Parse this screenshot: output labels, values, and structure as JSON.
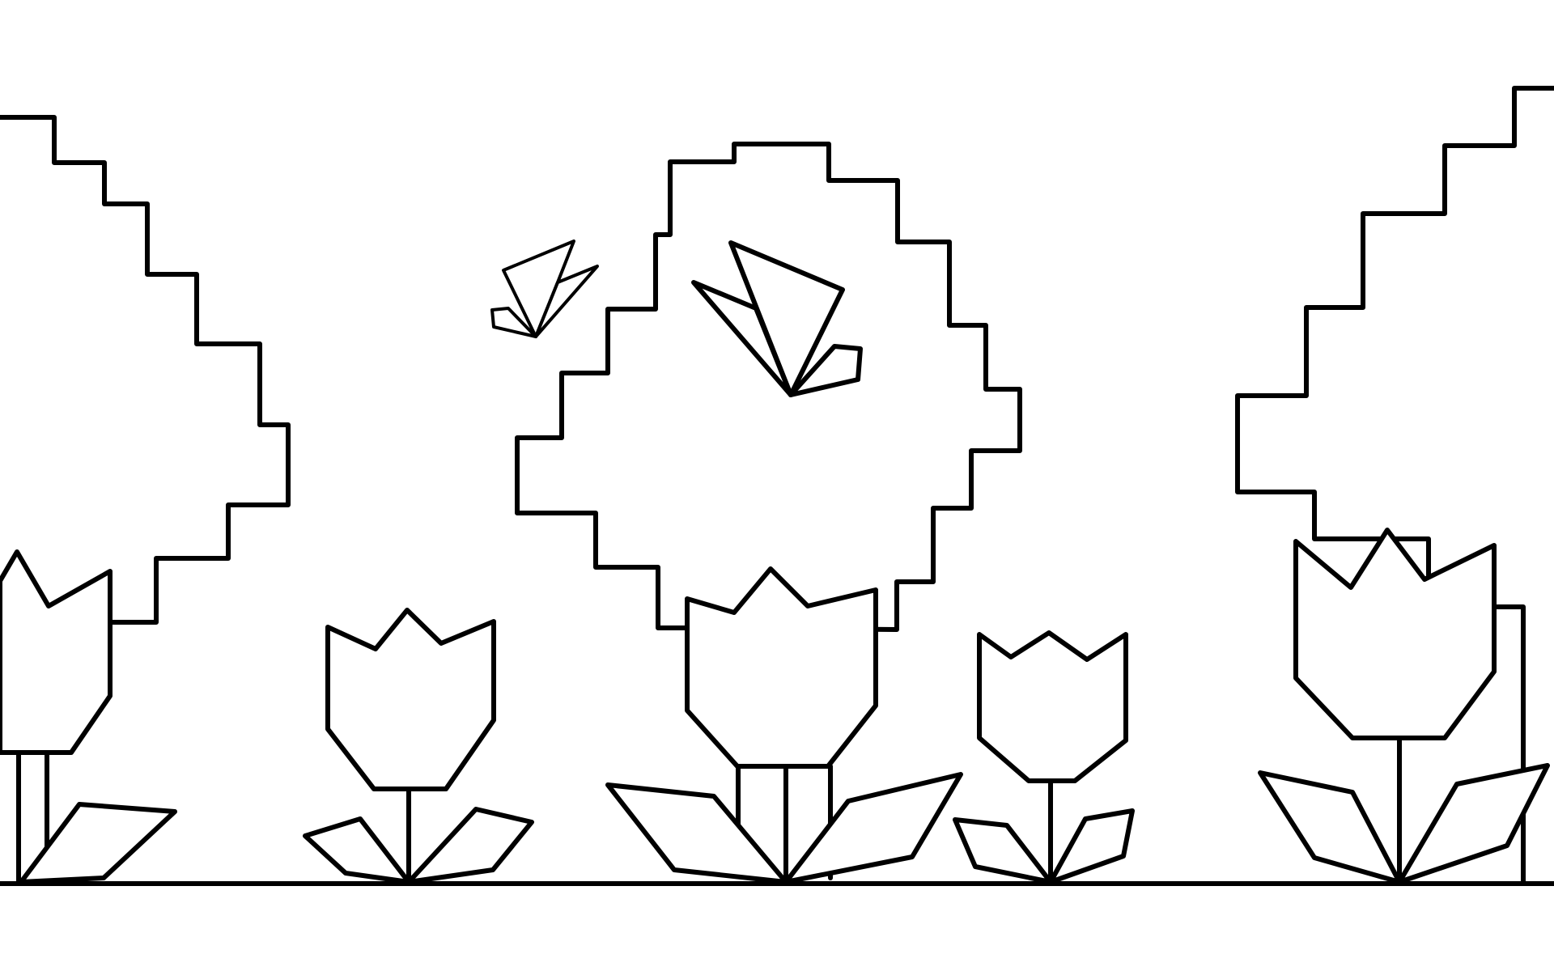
{
  "scene": {
    "background_color": "#ffffff",
    "ink_color": "#000000",
    "icons": [
      "tree-icon",
      "tulip-icon",
      "butterfly-icon",
      "ground-line"
    ]
  }
}
